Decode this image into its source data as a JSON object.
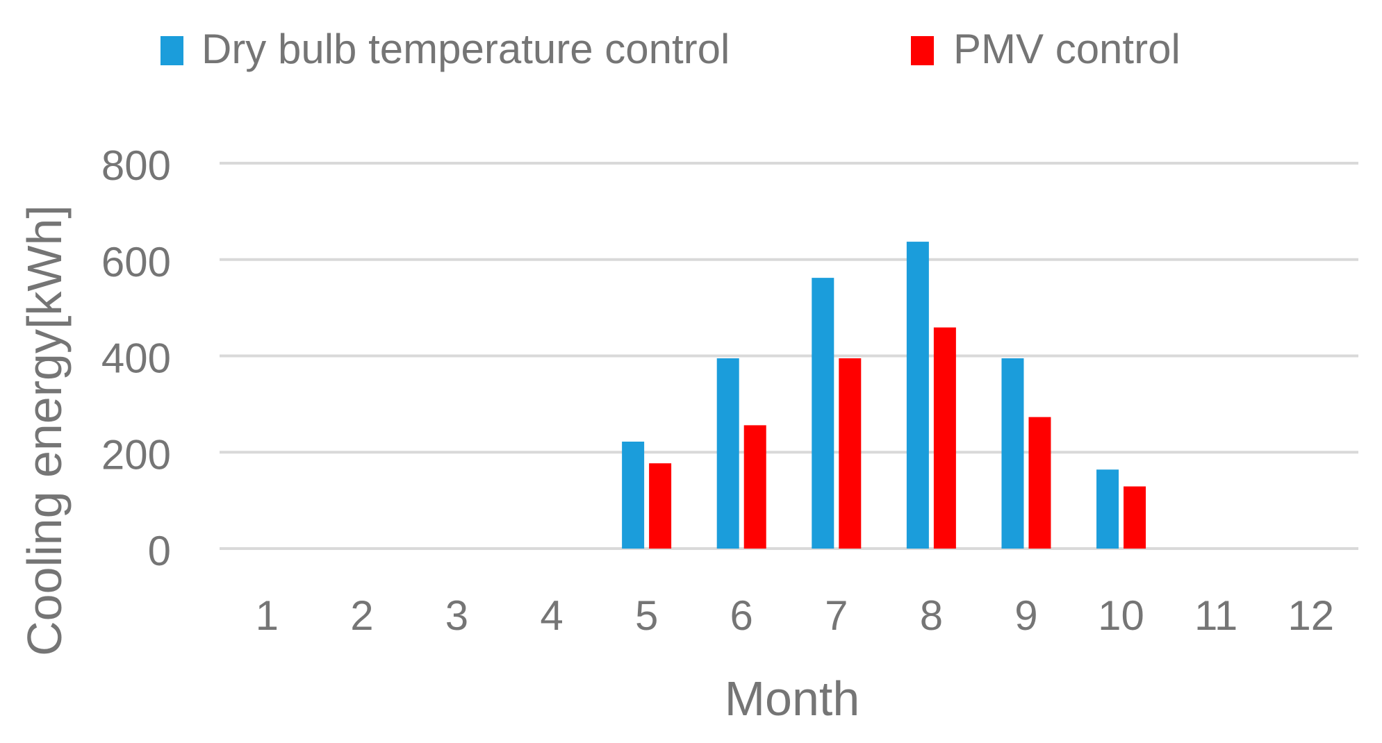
{
  "chart_data": {
    "type": "bar",
    "title": "",
    "xlabel": "Month",
    "ylabel": "Cooling energy[kWh]",
    "categories": [
      "1",
      "2",
      "3",
      "4",
      "5",
      "6",
      "7",
      "8",
      "9",
      "10",
      "11",
      "12"
    ],
    "series": [
      {
        "name": "Dry bulb temperature control",
        "color": "#1b9ddb",
        "values": [
          0,
          0,
          0,
          0,
          222,
          395,
          562,
          637,
          395,
          164,
          0,
          0
        ]
      },
      {
        "name": "PMV control",
        "color": "#ff0000",
        "values": [
          0,
          0,
          0,
          0,
          177,
          256,
          395,
          459,
          273,
          129,
          0,
          0
        ]
      }
    ],
    "ylim": [
      0,
      800
    ],
    "yticks": [
      0,
      200,
      400,
      600,
      800
    ],
    "grid": true,
    "legend": "top",
    "gridline_color": "#d9d9d9",
    "text_color": "#757575"
  }
}
